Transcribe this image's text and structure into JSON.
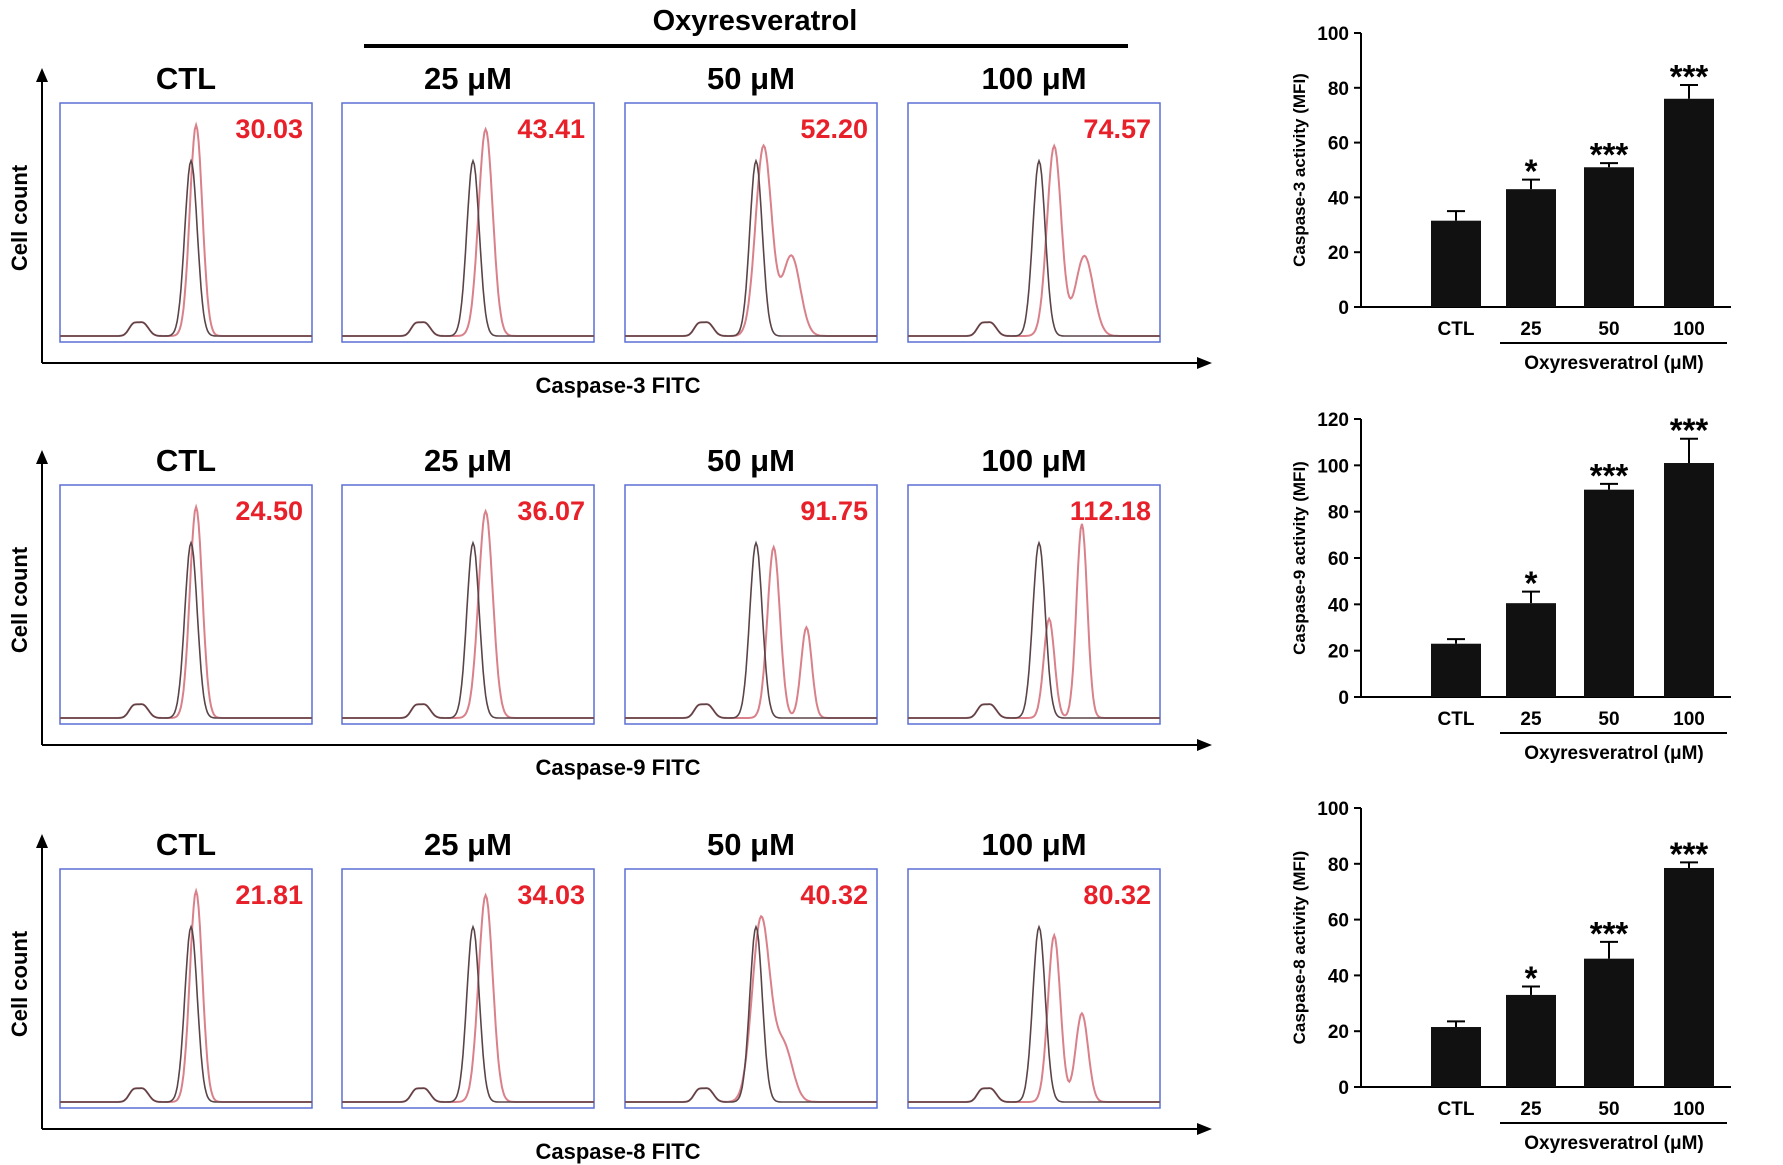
{
  "figure": {
    "treatment_label": "Oxyresveratrol",
    "rows": [
      {
        "y_label": "Cell count",
        "x_label": "Caspase-3 FITC",
        "panels": [
          {
            "title": "CTL",
            "value": "30.03"
          },
          {
            "title": "25 μM",
            "value": "43.41"
          },
          {
            "title": "50 μM",
            "value": "52.20"
          },
          {
            "title": "100 μM",
            "value": "74.57"
          }
        ]
      },
      {
        "y_label": "Cell count",
        "x_label": "Caspase-9 FITC",
        "panels": [
          {
            "title": "CTL",
            "value": "24.50"
          },
          {
            "title": "25 μM",
            "value": "36.07"
          },
          {
            "title": "50 μM",
            "value": "91.75"
          },
          {
            "title": "100 μM",
            "value": "112.18"
          }
        ]
      },
      {
        "y_label": "Cell count",
        "x_label": "Caspase-8 FITC",
        "panels": [
          {
            "title": "CTL",
            "value": "21.81"
          },
          {
            "title": "25 μM",
            "value": "34.03"
          },
          {
            "title": "50 μM",
            "value": "40.32"
          },
          {
            "title": "100 μM",
            "value": "80.32"
          }
        ]
      }
    ]
  },
  "colors": {
    "panel_border": "#5b6fd6",
    "value_text": "#e8202a",
    "control_trace": "#5a4448",
    "treated_trace": "#d9818a",
    "bar_fill": "#111111"
  },
  "chart_data": [
    {
      "type": "bar",
      "ylabel": "Caspase-3 activity (MFI)",
      "xlabel": "Oxyresveratrol (μM)",
      "categories": [
        "CTL",
        "25",
        "50",
        "100"
      ],
      "values": [
        31.5,
        43,
        51,
        76
      ],
      "errors": [
        3.5,
        3.5,
        1.5,
        5
      ],
      "significance": [
        "",
        "*",
        "***",
        "***"
      ],
      "ylim": [
        0,
        100
      ],
      "yticks": [
        0,
        20,
        40,
        60,
        80,
        100
      ]
    },
    {
      "type": "bar",
      "ylabel": "Caspase-9 activity (MFI)",
      "xlabel": "Oxyresveratrol (μM)",
      "categories": [
        "CTL",
        "25",
        "50",
        "100"
      ],
      "values": [
        23,
        40.5,
        89.5,
        101
      ],
      "errors": [
        2,
        5,
        2.5,
        10.5
      ],
      "significance": [
        "",
        "*",
        "***",
        "***"
      ],
      "ylim": [
        0,
        120
      ],
      "yticks": [
        0,
        20,
        40,
        60,
        80,
        100,
        120
      ]
    },
    {
      "type": "bar",
      "ylabel": "Caspase-8 activity (MFI)",
      "xlabel": "Oxyresveratrol (μM)",
      "categories": [
        "CTL",
        "25",
        "50",
        "100"
      ],
      "values": [
        21.5,
        33,
        46,
        78.5
      ],
      "errors": [
        2,
        3,
        6,
        2
      ],
      "significance": [
        "",
        "*",
        "***",
        "***"
      ],
      "ylim": [
        0,
        100
      ],
      "yticks": [
        0,
        20,
        40,
        60,
        80,
        100
      ]
    }
  ]
}
